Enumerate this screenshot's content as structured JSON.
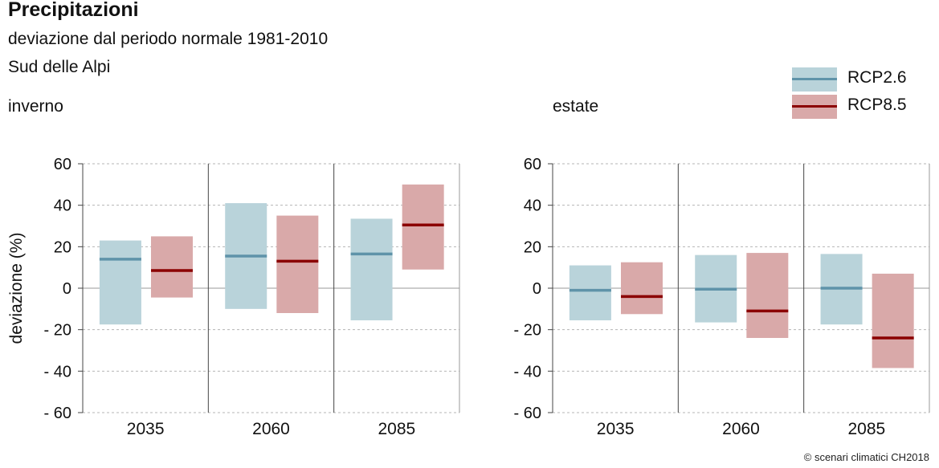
{
  "header": {
    "title": "Precipitazioni",
    "subtitle": "deviazione dal periodo normale 1981-2010",
    "region": "Sud delle Alpi"
  },
  "legend": [
    {
      "label": "RCP2.6",
      "line_color": "#5f93a9",
      "fill_color": "#b9d3da"
    },
    {
      "label": "RCP8.5",
      "line_color": "#8b0000",
      "fill_color": "#d9a9a9"
    }
  ],
  "credit": "© scenari climatici CH2018",
  "chart_data": [
    {
      "type": "range-bar",
      "title": "inverno",
      "ylabel": "deviazione (%)",
      "xlabel": "",
      "ylim": [
        -60,
        60
      ],
      "yticks": [
        60,
        40,
        20,
        0,
        -20,
        -40,
        -60
      ],
      "ytick_labels": [
        "60",
        "40",
        "20",
        "0",
        "- 20",
        "- 40",
        "- 60"
      ],
      "categories": [
        "2035",
        "2060",
        "2085"
      ],
      "series": [
        {
          "name": "RCP2.6",
          "low": [
            -17.5,
            -10,
            -15.5
          ],
          "median": [
            14,
            15.5,
            16.5
          ],
          "high": [
            23,
            41,
            33.5
          ]
        },
        {
          "name": "RCP8.5",
          "low": [
            -4.5,
            -12,
            9
          ],
          "median": [
            8.5,
            13,
            30.5
          ],
          "high": [
            25,
            35,
            50
          ]
        }
      ]
    },
    {
      "type": "range-bar",
      "title": "estate",
      "ylabel": "",
      "xlabel": "",
      "ylim": [
        -60,
        60
      ],
      "yticks": [
        60,
        40,
        20,
        0,
        -20,
        -40,
        -60
      ],
      "ytick_labels": [
        "60",
        "40",
        "20",
        "0",
        "- 20",
        "- 40",
        "- 60"
      ],
      "categories": [
        "2035",
        "2060",
        "2085"
      ],
      "series": [
        {
          "name": "RCP2.6",
          "low": [
            -15.5,
            -16.5,
            -17.5
          ],
          "median": [
            -1,
            -0.5,
            0
          ],
          "high": [
            11,
            16,
            16.5
          ]
        },
        {
          "name": "RCP8.5",
          "low": [
            -12.5,
            -24,
            -38.5
          ],
          "median": [
            -4,
            -11,
            -24
          ],
          "high": [
            12.5,
            17,
            7
          ]
        }
      ]
    }
  ]
}
